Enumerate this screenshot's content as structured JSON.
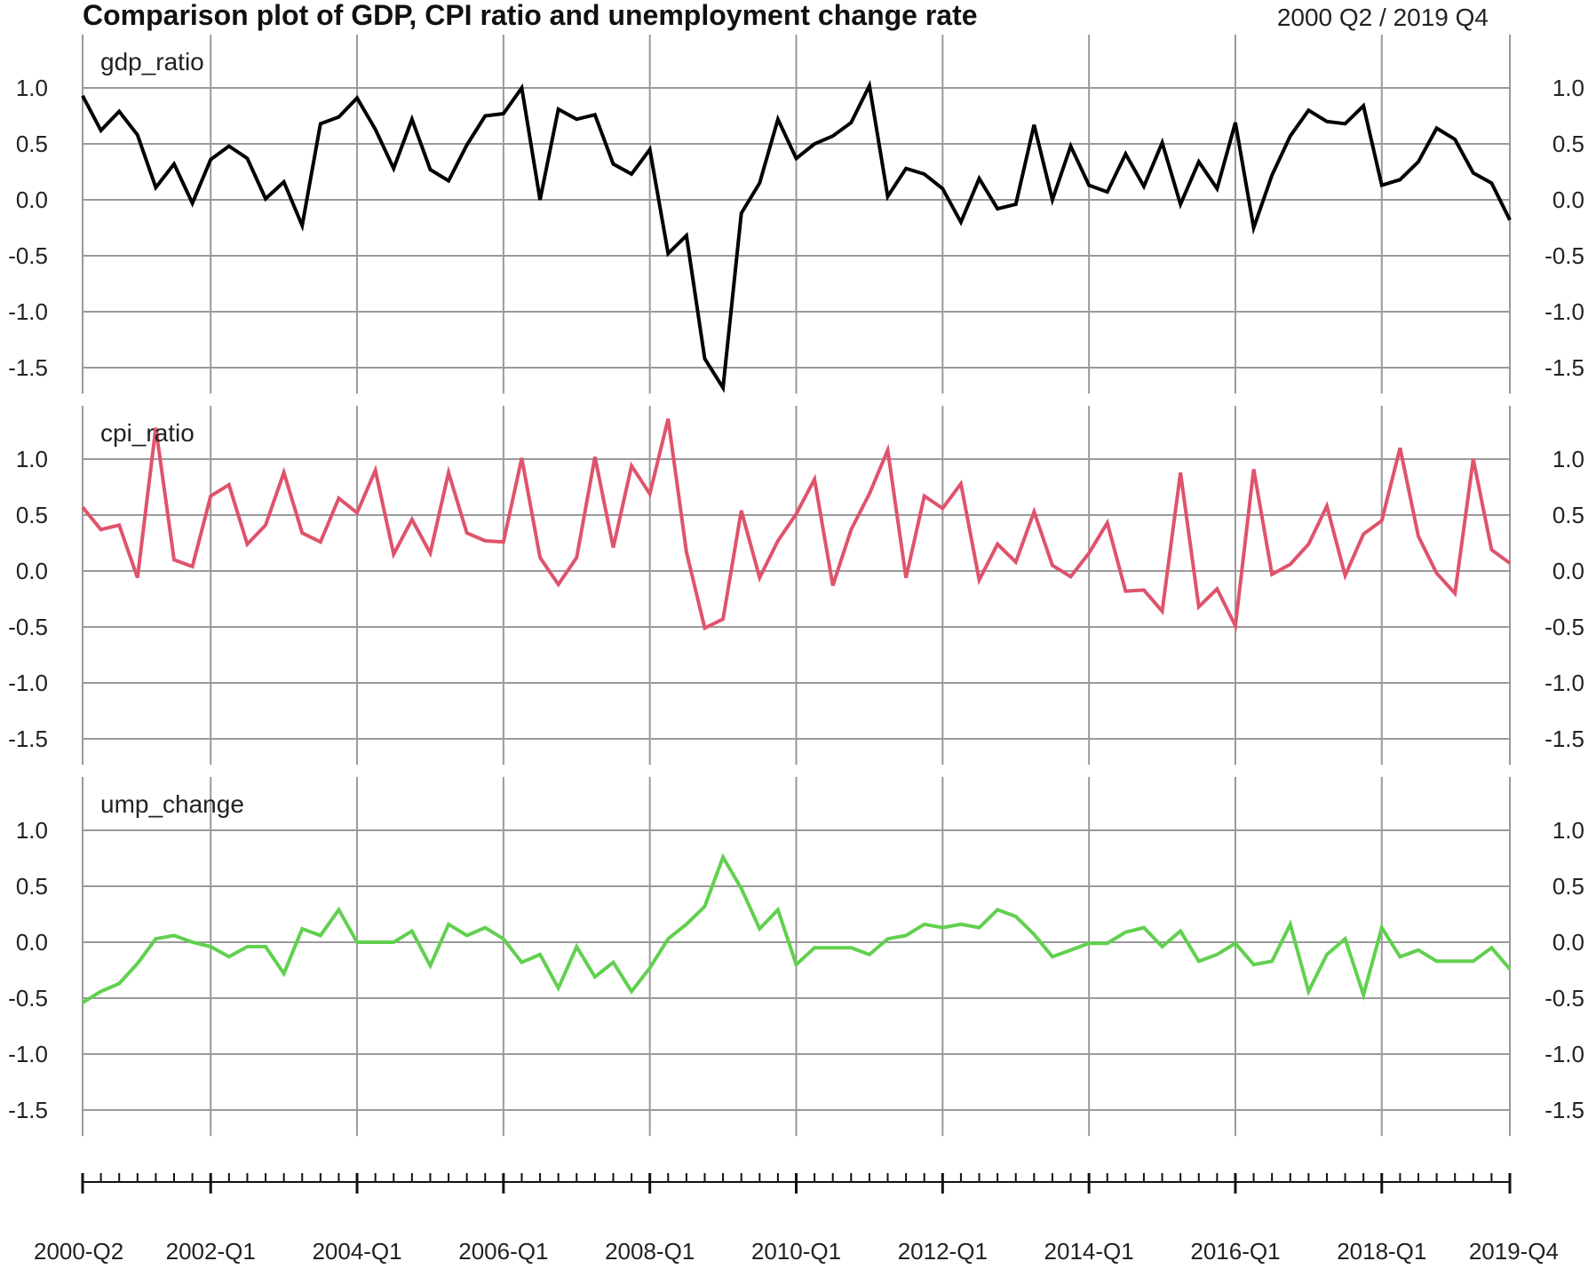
{
  "chart_data": {
    "type": "line",
    "title": "Comparison plot of GDP, CPI ratio and unemployment change rate",
    "date_range_label": "2000 Q2 / 2019 Q4",
    "x": [
      "2000-Q2",
      "2000-Q3",
      "2000-Q4",
      "2001-Q1",
      "2001-Q2",
      "2001-Q3",
      "2001-Q4",
      "2002-Q1",
      "2002-Q2",
      "2002-Q3",
      "2002-Q4",
      "2003-Q1",
      "2003-Q2",
      "2003-Q3",
      "2003-Q4",
      "2004-Q1",
      "2004-Q2",
      "2004-Q3",
      "2004-Q4",
      "2005-Q1",
      "2005-Q2",
      "2005-Q3",
      "2005-Q4",
      "2006-Q1",
      "2006-Q2",
      "2006-Q3",
      "2006-Q4",
      "2007-Q1",
      "2007-Q2",
      "2007-Q3",
      "2007-Q4",
      "2008-Q1",
      "2008-Q2",
      "2008-Q3",
      "2008-Q4",
      "2009-Q1",
      "2009-Q2",
      "2009-Q3",
      "2009-Q4",
      "2010-Q1",
      "2010-Q2",
      "2010-Q3",
      "2010-Q4",
      "2011-Q1",
      "2011-Q2",
      "2011-Q3",
      "2011-Q4",
      "2012-Q1",
      "2012-Q2",
      "2012-Q3",
      "2012-Q4",
      "2013-Q1",
      "2013-Q2",
      "2013-Q3",
      "2013-Q4",
      "2014-Q1",
      "2014-Q2",
      "2014-Q3",
      "2014-Q4",
      "2015-Q1",
      "2015-Q2",
      "2015-Q3",
      "2015-Q4",
      "2016-Q1",
      "2016-Q2",
      "2016-Q3",
      "2016-Q4",
      "2017-Q1",
      "2017-Q2",
      "2017-Q3",
      "2017-Q4",
      "2018-Q1",
      "2018-Q2",
      "2018-Q3",
      "2018-Q4",
      "2019-Q1",
      "2019-Q2",
      "2019-Q3",
      "2019-Q4"
    ],
    "x_tick_labels": [
      "2000-Q2",
      "2002-Q1",
      "2004-Q1",
      "2006-Q1",
      "2008-Q1",
      "2010-Q1",
      "2012-Q1",
      "2014-Q1",
      "2016-Q1",
      "2018-Q1",
      "2019-Q4"
    ],
    "ylim": [
      -1.7,
      1.35
    ],
    "yticks": [
      "1.0",
      "0.5",
      "0.0",
      "-0.5",
      "-1.0",
      "-1.5"
    ],
    "grid": true,
    "series": [
      {
        "name": "gdp_ratio",
        "color": "#000000",
        "values": [
          0.93,
          0.62,
          0.79,
          0.58,
          0.11,
          0.32,
          -0.03,
          0.36,
          0.48,
          0.37,
          0.01,
          0.16,
          -0.23,
          0.68,
          0.74,
          0.91,
          0.63,
          0.28,
          0.72,
          0.27,
          0.17,
          0.49,
          0.75,
          0.77,
          1.0,
          0.0,
          0.81,
          0.72,
          0.76,
          0.32,
          0.23,
          0.45,
          -0.48,
          -0.32,
          -1.42,
          -1.68,
          -0.12,
          0.15,
          0.72,
          0.37,
          0.5,
          0.57,
          0.69,
          1.02,
          0.03,
          0.28,
          0.23,
          0.1,
          -0.2,
          0.19,
          -0.08,
          -0.04,
          0.67,
          0.0,
          0.48,
          0.13,
          0.07,
          0.41,
          0.12,
          0.51,
          -0.04,
          0.34,
          0.1,
          0.69,
          -0.25,
          0.22,
          0.57,
          0.8,
          0.7,
          0.68,
          0.84,
          0.13,
          0.18,
          0.34,
          0.64,
          0.54,
          0.24,
          0.15,
          -0.18
        ]
      },
      {
        "name": "cpi_ratio",
        "color": "#DF536B",
        "values": [
          0.57,
          0.37,
          0.41,
          -0.06,
          1.28,
          0.1,
          0.04,
          0.67,
          0.77,
          0.24,
          0.41,
          0.88,
          0.34,
          0.26,
          0.65,
          0.52,
          0.9,
          0.15,
          0.46,
          0.16,
          0.88,
          0.34,
          0.27,
          0.26,
          1.01,
          0.12,
          -0.12,
          0.12,
          1.02,
          0.21,
          0.94,
          0.69,
          1.36,
          0.17,
          -0.51,
          -0.43,
          0.54,
          -0.06,
          0.27,
          0.51,
          0.82,
          -0.13,
          0.37,
          0.69,
          1.08,
          -0.06,
          0.67,
          0.56,
          0.78,
          -0.08,
          0.24,
          0.08,
          0.53,
          0.05,
          -0.05,
          0.16,
          0.43,
          -0.18,
          -0.17,
          -0.36,
          0.88,
          -0.32,
          -0.16,
          -0.49,
          0.91,
          -0.03,
          0.06,
          0.24,
          0.58,
          -0.04,
          0.33,
          0.45,
          1.1,
          0.31,
          -0.02,
          -0.2,
          1.0,
          0.19,
          0.07
        ]
      },
      {
        "name": "ump_change",
        "color": "#61D04F",
        "values": [
          -0.54,
          -0.44,
          -0.37,
          -0.19,
          0.03,
          0.06,
          0.0,
          -0.04,
          -0.13,
          -0.04,
          -0.04,
          -0.28,
          0.12,
          0.06,
          0.29,
          0.0,
          0.0,
          0.0,
          0.1,
          -0.21,
          0.16,
          0.06,
          0.13,
          0.03,
          -0.18,
          -0.11,
          -0.41,
          -0.04,
          -0.31,
          -0.18,
          -0.44,
          -0.23,
          0.03,
          0.16,
          0.32,
          0.76,
          0.48,
          0.12,
          0.29,
          -0.2,
          -0.05,
          -0.05,
          -0.05,
          -0.11,
          0.03,
          0.06,
          0.16,
          0.13,
          0.16,
          0.13,
          0.29,
          0.23,
          0.07,
          -0.13,
          -0.07,
          -0.01,
          -0.01,
          0.09,
          0.13,
          -0.04,
          0.1,
          -0.17,
          -0.11,
          -0.01,
          -0.2,
          -0.17,
          0.16,
          -0.44,
          -0.11,
          0.03,
          -0.47,
          0.13,
          -0.13,
          -0.07,
          -0.17,
          -0.17,
          -0.17,
          -0.05,
          -0.24
        ]
      }
    ]
  }
}
